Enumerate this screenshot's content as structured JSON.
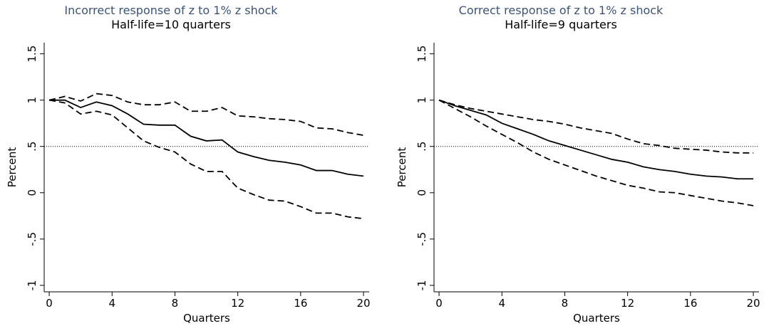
{
  "chart_data": [
    {
      "type": "line",
      "title": "Incorrect response of z to 1% z shock",
      "subtitle": "Half-life=10 quarters",
      "x_label": "Quarters",
      "y_label": "Percent",
      "x": [
        0,
        1,
        2,
        3,
        4,
        5,
        6,
        7,
        8,
        9,
        10,
        11,
        12,
        13,
        14,
        15,
        16,
        17,
        18,
        19,
        20
      ],
      "series": [
        {
          "color": "#000000",
          "dashed": false,
          "values": [
            1,
            1,
            0.92,
            0.98,
            0.94,
            0.85,
            0.74,
            0.73,
            0.73,
            0.61,
            0.56,
            0.57,
            0.44,
            0.39,
            0.35,
            0.33,
            0.3,
            0.24,
            0.24,
            0.2,
            0.18
          ]
        },
        {
          "color": "#000000",
          "dashed": true,
          "values": [
            1,
            1.04,
            0.99,
            1.07,
            1.05,
            0.98,
            0.95,
            0.95,
            0.98,
            0.88,
            0.88,
            0.92,
            0.83,
            0.82,
            0.8,
            0.79,
            0.77,
            0.7,
            0.69,
            0.65,
            0.62
          ]
        },
        {
          "color": "#000000",
          "dashed": true,
          "values": [
            1,
            0.97,
            0.85,
            0.88,
            0.84,
            0.7,
            0.56,
            0.49,
            0.44,
            0.31,
            0.23,
            0.23,
            0.05,
            -0.02,
            -0.08,
            -0.09,
            -0.15,
            -0.22,
            -0.22,
            -0.26,
            -0.28
          ]
        }
      ],
      "reference_line": 0.5,
      "xlim": [
        -0.32,
        20.36
      ],
      "xticks": [
        0,
        4,
        8,
        12,
        16,
        20
      ],
      "ylim": [
        -1.07,
        1.62
      ],
      "yticks": [
        -1,
        {
          "value": -0.5,
          "label": "-.5"
        },
        0,
        {
          "value": 0.5,
          "label": ".5"
        },
        1,
        1.5
      ]
    },
    {
      "type": "line",
      "title": "Correct response of z to 1% z shock",
      "subtitle": "Half-life=9 quarters",
      "x_label": "Quarters",
      "y_label": "Percent",
      "x": [
        0,
        1,
        2,
        3,
        4,
        5,
        6,
        7,
        8,
        9,
        10,
        11,
        12,
        13,
        14,
        15,
        16,
        17,
        18,
        19,
        20
      ],
      "series": [
        {
          "color": "#000000",
          "dashed": false,
          "values": [
            1,
            0.94,
            0.89,
            0.84,
            0.75,
            0.69,
            0.63,
            0.56,
            0.51,
            0.46,
            0.41,
            0.36,
            0.33,
            0.28,
            0.25,
            0.23,
            0.2,
            0.18,
            0.17,
            0.15,
            0.15
          ]
        },
        {
          "color": "#000000",
          "dashed": true,
          "values": [
            1,
            0.95,
            0.91,
            0.88,
            0.85,
            0.82,
            0.79,
            0.77,
            0.74,
            0.7,
            0.67,
            0.64,
            0.58,
            0.53,
            0.51,
            0.48,
            0.47,
            0.46,
            0.44,
            0.43,
            0.43
          ]
        },
        {
          "color": "#000000",
          "dashed": true,
          "values": [
            1,
            0.91,
            0.82,
            0.72,
            0.63,
            0.54,
            0.44,
            0.36,
            0.3,
            0.24,
            0.18,
            0.13,
            0.08,
            0.05,
            0.01,
            0.0,
            -0.03,
            -0.06,
            -0.09,
            -0.11,
            -0.14
          ]
        }
      ],
      "reference_line": 0.5,
      "xlim": [
        -0.32,
        20.36
      ],
      "xticks": [
        0,
        4,
        8,
        12,
        16,
        20
      ],
      "ylim": [
        -1.07,
        1.62
      ],
      "yticks": [
        -1,
        {
          "value": -0.5,
          "label": "-.5"
        },
        0,
        {
          "value": 0.5,
          "label": ".5"
        },
        1,
        1.5
      ]
    }
  ]
}
